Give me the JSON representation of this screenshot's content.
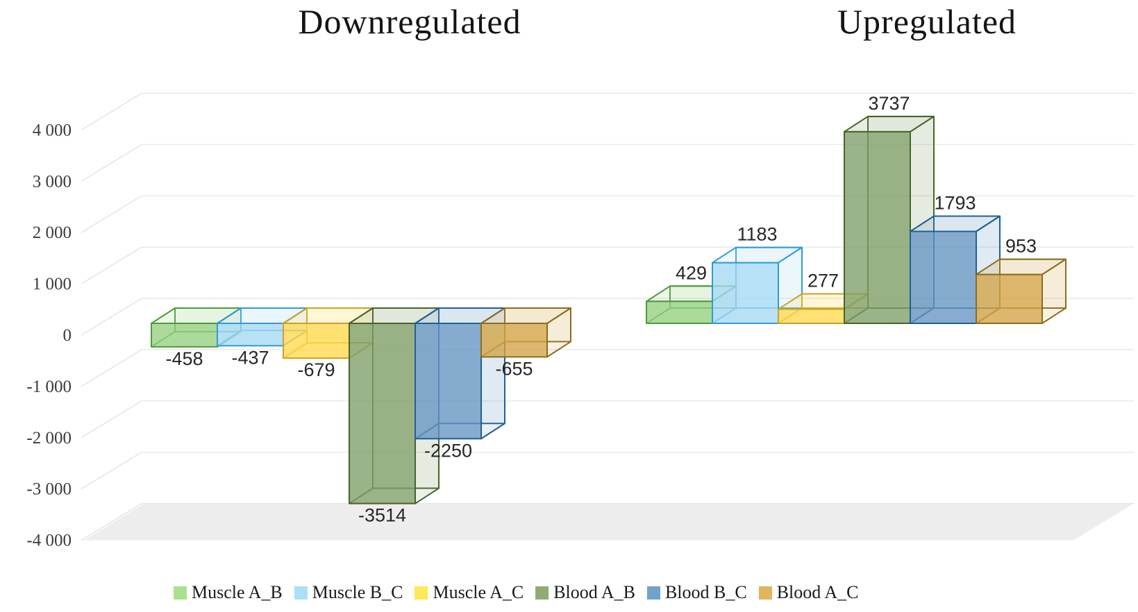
{
  "chart_data": {
    "type": "bar",
    "projection": "3d",
    "categories": [
      "Downregulated",
      "Upregulated"
    ],
    "series": [
      {
        "name": "Muscle A_B",
        "values": [
          -458,
          429
        ],
        "fill": "#94d07f",
        "stroke": "#4f9a3a",
        "legend_swatch": "#a9e18c"
      },
      {
        "name": "Muscle B_C",
        "values": [
          -437,
          1183
        ],
        "fill": "#a4d9f3",
        "stroke": "#2f9bd8",
        "legend_swatch": "#a8e0f5"
      },
      {
        "name": "Muscle A_C",
        "values": [
          -679,
          277
        ],
        "fill": "#ffd84d",
        "stroke": "#c7a229",
        "legend_swatch": "#fbe955"
      },
      {
        "name": "Blood A_B",
        "values": [
          -3514,
          3737
        ],
        "fill": "#7e9d66",
        "stroke": "#48632a",
        "legend_swatch": "#8fac73"
      },
      {
        "name": "Blood B_C",
        "values": [
          -2250,
          1793
        ],
        "fill": "#6595c1",
        "stroke": "#1f5f96",
        "legend_swatch": "#6fa3cc"
      },
      {
        "name": "Blood A_C",
        "values": [
          -655,
          953
        ],
        "fill": "#d3a345",
        "stroke": "#8a6d1d",
        "legend_swatch": "#e2b45c"
      }
    ],
    "data_labels": {
      "Downregulated": [
        "-458",
        "-437",
        "-679",
        "-3514",
        "-2250",
        "-655"
      ],
      "Upregulated": [
        "429",
        "1183",
        "277",
        "3737",
        "1793",
        "953"
      ]
    },
    "ylim": [
      -4000,
      4000
    ],
    "y_tick_step": 1000,
    "y_tick_labels": [
      "4 000",
      "3 000",
      "2 000",
      "1 000",
      "0",
      "-1 000",
      "-2 000",
      "-3 000",
      "-4 000"
    ],
    "grid": true,
    "legend_position": "bottom",
    "background": "#ffffff",
    "floor_color": "#ededed",
    "grid_color": "#e4e4e4",
    "axis_text_color": "#3a3a3a",
    "label_text_color": "#262626"
  }
}
